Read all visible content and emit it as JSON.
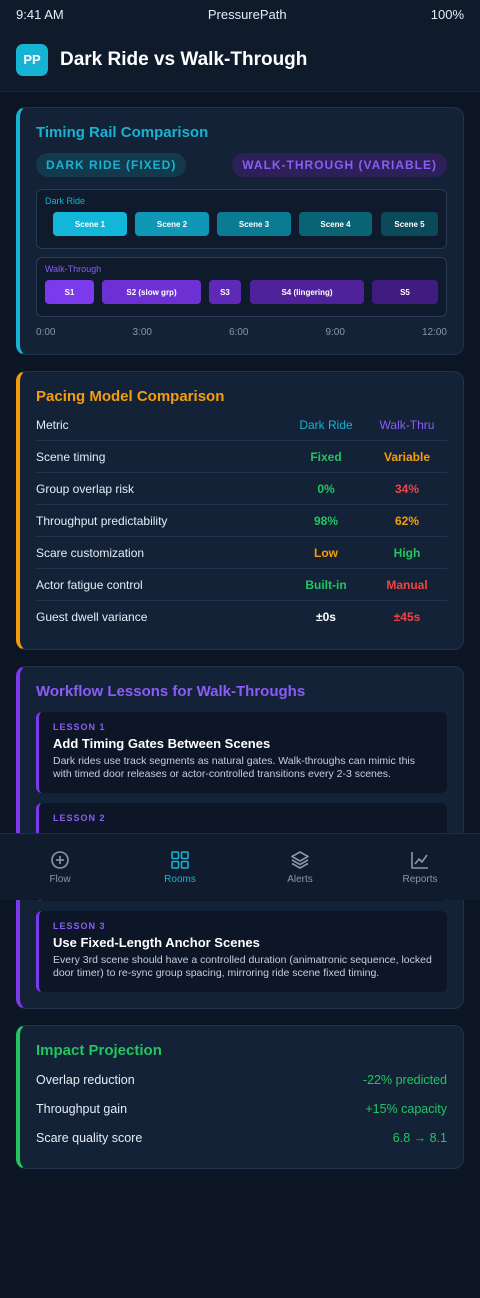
{
  "status": {
    "time": "9:41 AM",
    "app": "PressurePath",
    "battery": "100%"
  },
  "header": {
    "logo": "PP",
    "title": "Dark Ride vs Walk-Through"
  },
  "colors": {
    "cyan": "#17b3d3",
    "orange": "#f59e0b",
    "purple": "#7c3aed",
    "green": "#22c55e",
    "red": "#ef4444"
  },
  "timing": {
    "title": "Timing Rail Comparison",
    "pill_dark": "DARK RIDE (FIXED)",
    "pill_walk": "WALK-THROUGH (VARIABLE)",
    "dark_label": "Dark Ride",
    "walk_label": "Walk-Through",
    "dark_segments": [
      "Scene 1",
      "Scene 2",
      "Scene 3",
      "Scene 4",
      "Scene 5"
    ],
    "walk_segments": [
      "S1",
      "S2 (slow grp)",
      "S3",
      "S4 (lingering)",
      "S5"
    ],
    "axis": [
      "0:00",
      "3:00",
      "6:00",
      "9:00",
      "12:00"
    ]
  },
  "pacing": {
    "title": "Pacing Model Comparison",
    "headers": [
      "Metric",
      "Dark Ride",
      "Walk-Thru"
    ],
    "rows": [
      [
        "Scene timing",
        "Fixed",
        "Variable"
      ],
      [
        "Group overlap risk",
        "0%",
        "34%"
      ],
      [
        "Throughput predictability",
        "98%",
        "62%"
      ],
      [
        "Scare customization",
        "Low",
        "High"
      ],
      [
        "Actor fatigue control",
        "Built-in",
        "Manual"
      ],
      [
        "Guest dwell variance",
        "±0s",
        "±45s"
      ]
    ]
  },
  "workflow": {
    "title": "Workflow Lessons for Walk-Throughs",
    "lessons": [
      {
        "num": "LESSON 1",
        "title": "Add Timing Gates Between Scenes",
        "text": "Dark rides use track segments as natural gates. Walk-throughs can mimic this with timed door releases or actor-controlled transitions every 2-3 scenes."
      },
      {
        "num": "LESSON 2",
        "title": "",
        "text": ""
      },
      {
        "num": "LESSON 3",
        "title": "Use Fixed-Length Anchor Scenes",
        "text": "Every 3rd scene should have a controlled duration (animatronic sequence, locked door timer) to re-sync group spacing, mirroring ride scene fixed timing."
      }
    ]
  },
  "impact": {
    "title": "Impact Projection",
    "rows": [
      {
        "label": "Overlap reduction",
        "value": "-22% predicted"
      },
      {
        "label": "Throughput gain",
        "value": "+15% capacity"
      },
      {
        "label": "Scare quality score",
        "value": "6.8 → 8.1"
      }
    ]
  },
  "tabs": [
    {
      "label": "Flow",
      "icon": "plus-circle-icon"
    },
    {
      "label": "Rooms",
      "icon": "grid-icon"
    },
    {
      "label": "Alerts",
      "icon": "layers-icon"
    },
    {
      "label": "Reports",
      "icon": "line-chart-icon"
    }
  ]
}
